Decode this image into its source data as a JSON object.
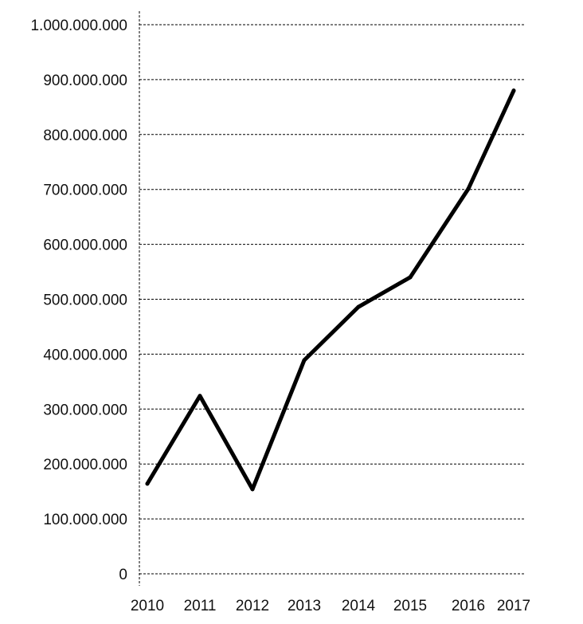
{
  "chart_data": {
    "type": "line",
    "title": "",
    "xlabel": "",
    "ylabel": "",
    "categories": [
      "2010",
      "2011",
      "2012",
      "2013",
      "2014",
      "2015",
      "2016",
      "2017"
    ],
    "series": [
      {
        "name": "",
        "values": [
          164000000,
          324000000,
          154000000,
          389000000,
          486000000,
          540000000,
          701000000,
          880000000
        ],
        "color": "#000000"
      }
    ],
    "ylim": [
      0,
      1000000000
    ],
    "yticks": [
      0,
      100000000,
      200000000,
      300000000,
      400000000,
      500000000,
      600000000,
      700000000,
      800000000,
      900000000,
      1000000000
    ],
    "ytick_labels": [
      "0",
      "100.000.000",
      "200.000.000",
      "300.000.000",
      "400.000.000",
      "500.000.000",
      "600.000.000",
      "700.000.000",
      "800.000.000",
      "900.000.000",
      "1.000.000.000"
    ],
    "grid": true,
    "legend": "none"
  }
}
